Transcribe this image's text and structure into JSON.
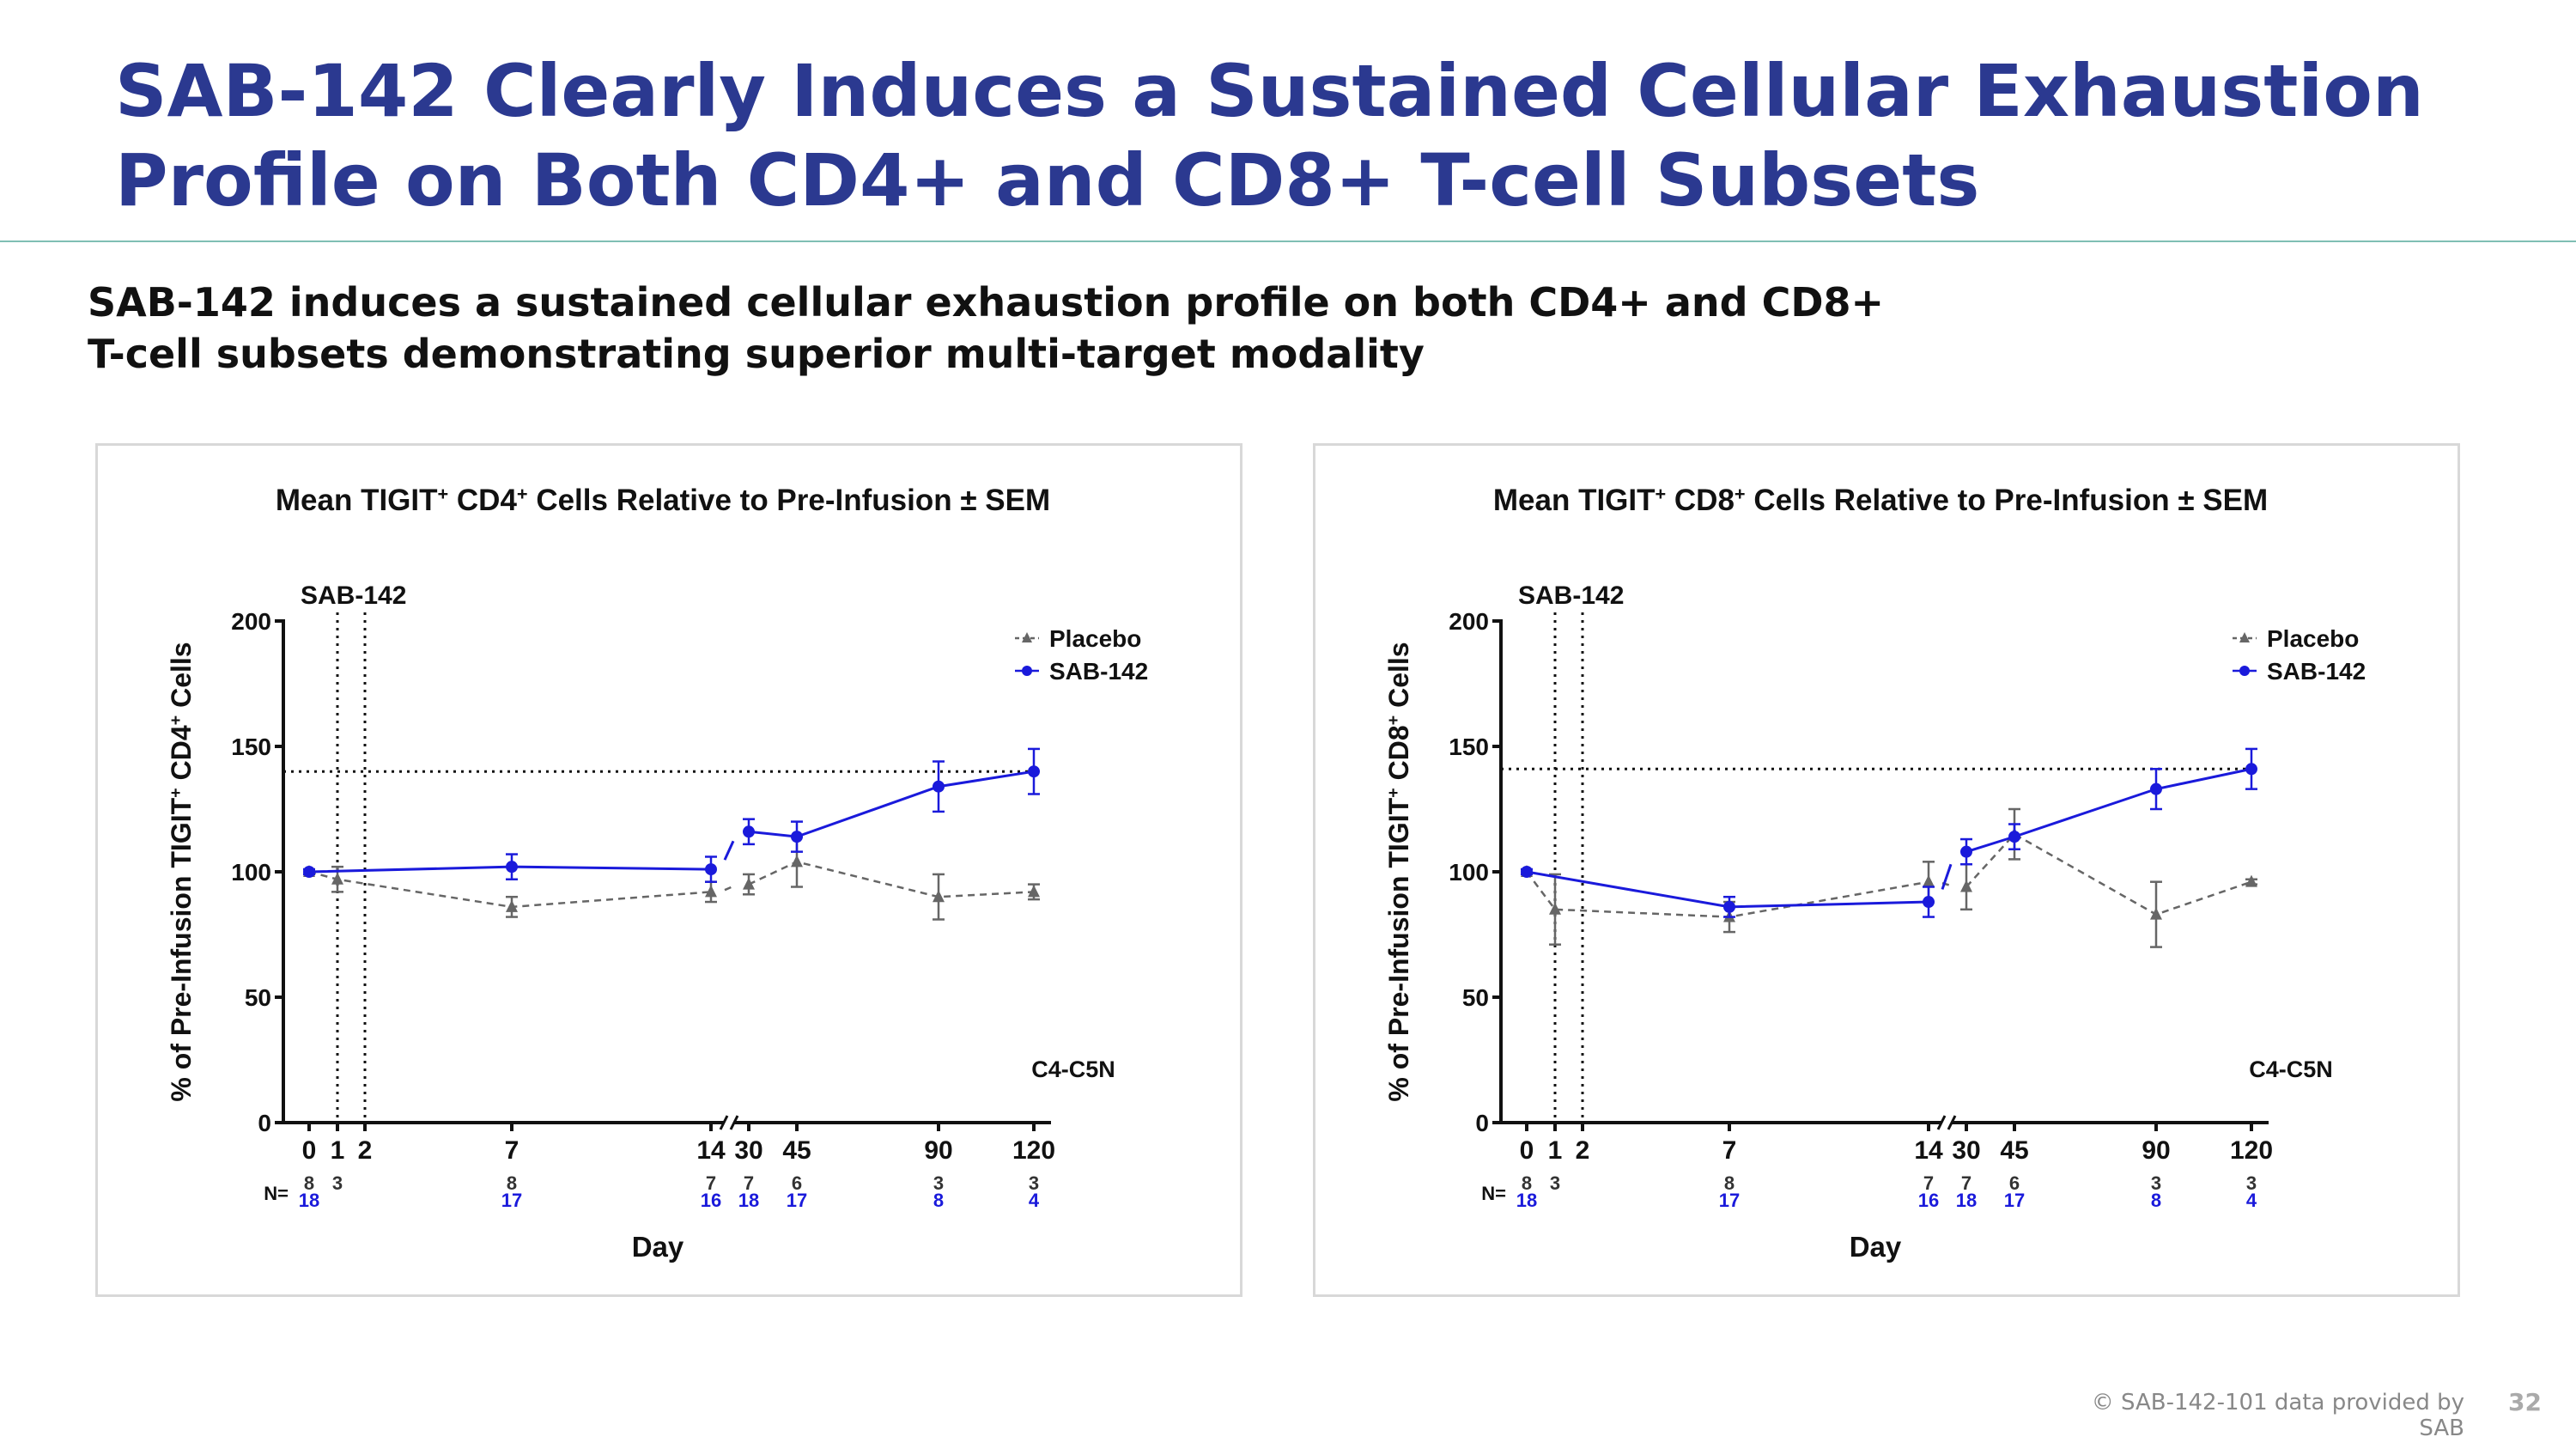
{
  "slide": {
    "title_line1": "SAB-142 Clearly Induces a Sustained Cellular Exhaustion",
    "title_line2": "Profile on Both CD4+ and CD8+ T-cell Subsets",
    "subtitle_line1": "SAB-142 induces a sustained cellular exhaustion profile on both CD4+ and CD8+",
    "subtitle_line2": "T-cell subsets demonstrating superior multi-target modality",
    "footer": "© SAB-142-101 data provided by SAB",
    "page_number": "32"
  },
  "colors": {
    "title": "#2b3990",
    "sab142": "#1a1adb",
    "placebo": "#666666"
  },
  "chart_data": [
    {
      "type": "line",
      "title_parts": [
        "Mean TIGIT",
        "+",
        " CD4",
        "+",
        " Cells Relative to Pre-Infusion ± SEM"
      ],
      "ylabel_parts": [
        "% of Pre-Infusion TIGIT",
        "+",
        " CD4",
        "+",
        " Cells"
      ],
      "xlabel": "Day",
      "dose_label": "SAB-142",
      "cohort_label": "C4-C5N",
      "n_label": "N=",
      "ylim": [
        0,
        200
      ],
      "yticks": [
        0,
        50,
        100,
        150,
        200
      ],
      "categories": [
        "0",
        "1",
        "2",
        "7",
        "14",
        "30",
        "45",
        "90",
        "120"
      ],
      "reference_line": 140,
      "dose_days": [
        "1",
        "2"
      ],
      "axis_break_between": [
        "14",
        "30"
      ],
      "series": [
        {
          "name": "Placebo",
          "style": "dashed",
          "marker": "triangle",
          "x": [
            "0",
            "1",
            "7",
            "14",
            "30",
            "45",
            "90",
            "120"
          ],
          "y": [
            100,
            97,
            86,
            92,
            95,
            104,
            90,
            92
          ],
          "err": [
            1,
            5,
            4,
            4,
            4,
            10,
            9,
            3
          ],
          "n": [
            "8",
            "3",
            "8",
            "7",
            "7",
            "6",
            "3",
            "3"
          ]
        },
        {
          "name": "SAB-142",
          "style": "solid",
          "marker": "circle",
          "x": [
            "0",
            "7",
            "14",
            "30",
            "45",
            "90",
            "120"
          ],
          "y": [
            100,
            102,
            101,
            116,
            114,
            134,
            140
          ],
          "err": [
            1,
            5,
            5,
            5,
            6,
            10,
            9
          ],
          "n": [
            "18",
            "17",
            "16",
            "18",
            "17",
            "8",
            "4"
          ]
        }
      ]
    },
    {
      "type": "line",
      "title_parts": [
        "Mean TIGIT",
        "+",
        " CD8",
        "+",
        " Cells Relative to Pre-Infusion ± SEM"
      ],
      "ylabel_parts": [
        "% of Pre-Infusion TIGIT",
        "+",
        " CD8",
        "+",
        " Cells"
      ],
      "xlabel": "Day",
      "dose_label": "SAB-142",
      "cohort_label": "C4-C5N",
      "n_label": "N=",
      "ylim": [
        0,
        200
      ],
      "yticks": [
        0,
        50,
        100,
        150,
        200
      ],
      "categories": [
        "0",
        "1",
        "2",
        "7",
        "14",
        "30",
        "45",
        "90",
        "120"
      ],
      "reference_line": 141,
      "dose_days": [
        "1",
        "2"
      ],
      "axis_break_between": [
        "14",
        "30"
      ],
      "series": [
        {
          "name": "Placebo",
          "style": "dashed",
          "marker": "triangle",
          "x": [
            "0",
            "1",
            "7",
            "14",
            "30",
            "45",
            "90",
            "120"
          ],
          "y": [
            100,
            85,
            82,
            96,
            94,
            115,
            83,
            96
          ],
          "err": [
            1,
            14,
            6,
            8,
            9,
            10,
            13,
            1
          ],
          "n": [
            "8",
            "3",
            "8",
            "7",
            "7",
            "6",
            "3",
            "3"
          ]
        },
        {
          "name": "SAB-142",
          "style": "solid",
          "marker": "circle",
          "x": [
            "0",
            "7",
            "14",
            "30",
            "45",
            "90",
            "120"
          ],
          "y": [
            100,
            86,
            88,
            108,
            114,
            133,
            141
          ],
          "err": [
            1,
            4,
            6,
            5,
            5,
            8,
            8
          ],
          "n": [
            "18",
            "17",
            "16",
            "18",
            "17",
            "8",
            "4"
          ]
        }
      ]
    }
  ]
}
